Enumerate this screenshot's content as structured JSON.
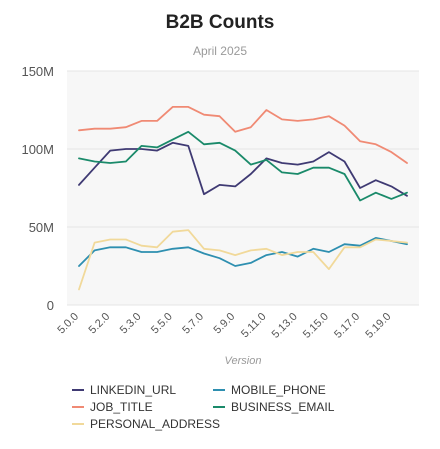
{
  "chart_data": {
    "type": "line",
    "title": "B2B Counts",
    "subtitle": "April 2025",
    "xlabel": "Version",
    "ylabel": "",
    "ylim": [
      0,
      150000000
    ],
    "y_ticks": [
      {
        "value": 0,
        "label": "0"
      },
      {
        "value": 50000000,
        "label": "50M"
      },
      {
        "value": 100000000,
        "label": "100M"
      },
      {
        "value": 150000000,
        "label": "150M"
      }
    ],
    "x": [
      "5.0.0",
      "5.1.0",
      "5.2.0",
      "5.2.1",
      "5.3.0",
      "5.4.0",
      "5.5.0",
      "5.6.0",
      "5.7.0",
      "5.8.0",
      "5.9.0",
      "5.10.0",
      "5.11.0",
      "5.12.0",
      "5.13.0",
      "5.14.0",
      "5.15.0",
      "5.16.0",
      "5.17.0",
      "5.18.0",
      "5.19.0",
      "5.20.0"
    ],
    "x_tick_labels": [
      {
        "index": 0,
        "label": "5.0.0"
      },
      {
        "index": 2,
        "label": "5.2.0"
      },
      {
        "index": 4,
        "label": "5.3.0"
      },
      {
        "index": 6,
        "label": "5.5.0"
      },
      {
        "index": 8,
        "label": "5.7.0"
      },
      {
        "index": 10,
        "label": "5.9.0"
      },
      {
        "index": 12,
        "label": "5.11.0"
      },
      {
        "index": 14,
        "label": "5.13.0"
      },
      {
        "index": 16,
        "label": "5.15.0"
      },
      {
        "index": 18,
        "label": "5.17.0"
      },
      {
        "index": 20,
        "label": "5.19.0"
      }
    ],
    "grid": true,
    "legend_position": "bottom",
    "series": [
      {
        "name": "LINKEDIN_URL",
        "color": "#3f3a73",
        "values": [
          77000000,
          88000000,
          99000000,
          100000000,
          100000000,
          99000000,
          104000000,
          102000000,
          71000000,
          77000000,
          76000000,
          84000000,
          94000000,
          91000000,
          90000000,
          92000000,
          98000000,
          92000000,
          75000000,
          80000000,
          76000000,
          70000000
        ]
      },
      {
        "name": "MOBILE_PHONE",
        "color": "#2e8fb0",
        "values": [
          25000000,
          35000000,
          37000000,
          37000000,
          34000000,
          34000000,
          36000000,
          37000000,
          33000000,
          30000000,
          25000000,
          27000000,
          32000000,
          34000000,
          31000000,
          36000000,
          34000000,
          39000000,
          38000000,
          43000000,
          41000000,
          39000000
        ]
      },
      {
        "name": "JOB_TITLE",
        "color": "#f08a74",
        "values": [
          112000000,
          113000000,
          113000000,
          114000000,
          118000000,
          118000000,
          127000000,
          127000000,
          122000000,
          121000000,
          111000000,
          114000000,
          125000000,
          119000000,
          118000000,
          119000000,
          121000000,
          115000000,
          105000000,
          103000000,
          98000000,
          91000000
        ]
      },
      {
        "name": "BUSINESS_EMAIL",
        "color": "#1a8a6a",
        "values": [
          94000000,
          92000000,
          91000000,
          92000000,
          102000000,
          101000000,
          106000000,
          111000000,
          103000000,
          104000000,
          99000000,
          90000000,
          93000000,
          85000000,
          84000000,
          88000000,
          88000000,
          84000000,
          67000000,
          72000000,
          68000000,
          72000000
        ]
      },
      {
        "name": "PERSONAL_ADDRESS",
        "color": "#f1d99a",
        "values": [
          10000000,
          40000000,
          42000000,
          42000000,
          38000000,
          37000000,
          47000000,
          48000000,
          36000000,
          35000000,
          32000000,
          35000000,
          36000000,
          32000000,
          34000000,
          34000000,
          23000000,
          37000000,
          37000000,
          42000000,
          41000000,
          40000000
        ]
      }
    ]
  }
}
